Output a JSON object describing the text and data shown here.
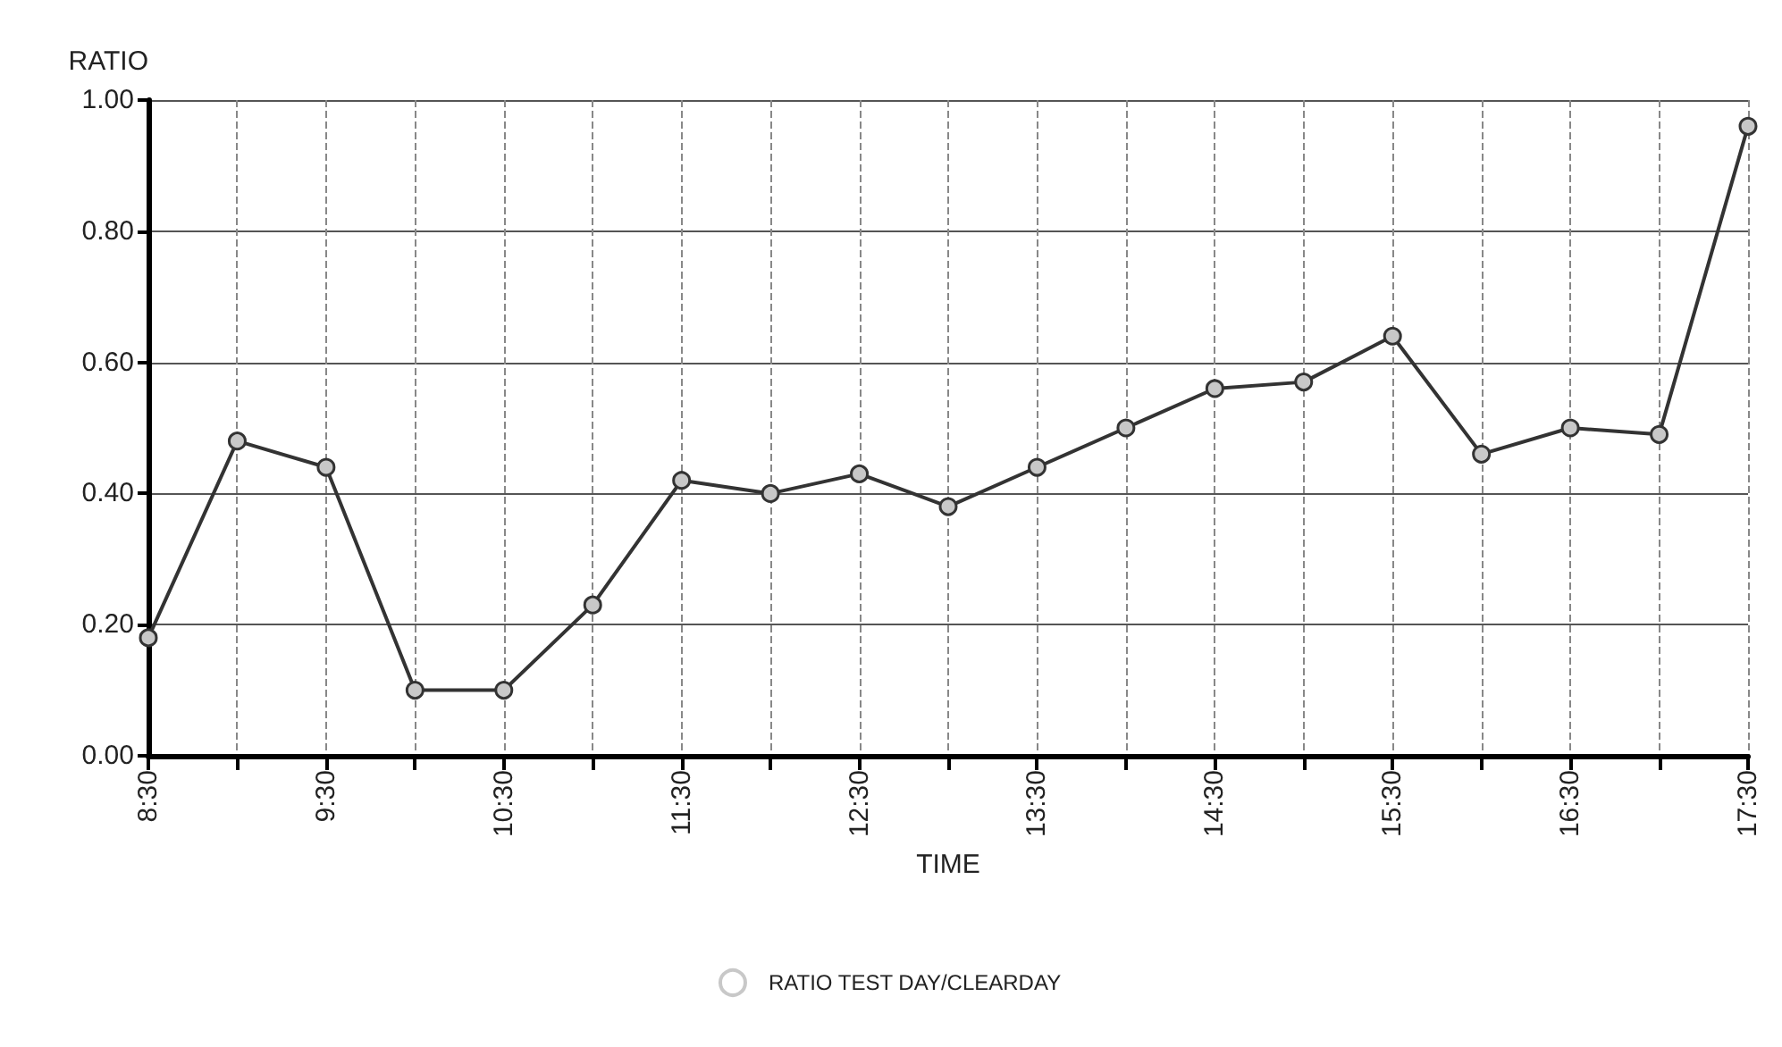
{
  "chart_data": {
    "type": "line",
    "xlabel": "TIME",
    "ylabel": "RATIO",
    "x": [
      8.5,
      9,
      9.5,
      10,
      10.5,
      11,
      11.5,
      12,
      12.5,
      13,
      13.5,
      14,
      14.5,
      15,
      15.5,
      16,
      16.5,
      17,
      17.5
    ],
    "series": [
      {
        "name": "RATIO TEST DAY/CLEARDAY",
        "color": "#333333",
        "values": [
          0.18,
          0.48,
          0.44,
          0.1,
          0.1,
          0.23,
          0.42,
          0.4,
          0.43,
          0.38,
          0.44,
          0.5,
          0.56,
          0.57,
          0.64,
          0.46,
          0.5,
          0.49,
          0.96
        ]
      }
    ],
    "xlim": [
      8.5,
      17.5
    ],
    "xticks": [
      {
        "value": 8.5,
        "label": "8:30"
      },
      {
        "value": 9,
        "label": null
      },
      {
        "value": 9.5,
        "label": "9:30"
      },
      {
        "value": 10,
        "label": null
      },
      {
        "value": 10.5,
        "label": "10:30"
      },
      {
        "value": 11,
        "label": null
      },
      {
        "value": 11.5,
        "label": "11:30"
      },
      {
        "value": 12,
        "label": null
      },
      {
        "value": 12.5,
        "label": "12:30"
      },
      {
        "value": 13,
        "label": null
      },
      {
        "value": 13.5,
        "label": "13:30"
      },
      {
        "value": 14,
        "label": null
      },
      {
        "value": 14.5,
        "label": "14:30"
      },
      {
        "value": 15,
        "label": null
      },
      {
        "value": 15.5,
        "label": "15:30"
      },
      {
        "value": 16,
        "label": null
      },
      {
        "value": 16.5,
        "label": "16:30"
      },
      {
        "value": 17,
        "label": null
      },
      {
        "value": 17.5,
        "label": "17:30"
      }
    ],
    "ylim": [
      0,
      1
    ],
    "yticks": [
      {
        "value": 0,
        "label": "0.00"
      },
      {
        "value": 0.2,
        "label": "0.20"
      },
      {
        "value": 0.4,
        "label": "0.40"
      },
      {
        "value": 0.6,
        "label": "0.60"
      },
      {
        "value": 0.8,
        "label": "0.80"
      },
      {
        "value": 1,
        "label": "1.00"
      }
    ],
    "grid": true,
    "legend": "bottom",
    "marker": "circle",
    "line_style": "solid"
  }
}
